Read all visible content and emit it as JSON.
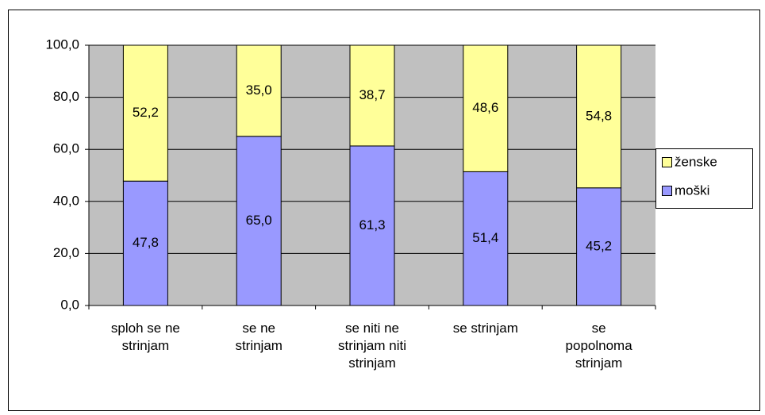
{
  "chart_data": {
    "type": "stacked_bar",
    "categories": [
      "sploh se ne strinjam",
      "se ne strinjam",
      "se niti ne strinjam niti strinjam",
      "se strinjam",
      "se popolnoma strinjam"
    ],
    "series": [
      {
        "name": "moški",
        "color": "#9999ff",
        "values": [
          47.8,
          65.0,
          61.3,
          51.4,
          45.2
        ],
        "value_labels": [
          "47,8",
          "65,0",
          "61,3",
          "51,4",
          "45,2"
        ]
      },
      {
        "name": "ženske",
        "color": "#ffff99",
        "values": [
          52.2,
          35.0,
          38.7,
          48.6,
          54.8
        ],
        "value_labels": [
          "52,2",
          "35,0",
          "38,7",
          "48,6",
          "54,8"
        ]
      }
    ],
    "ylim": [
      0,
      100
    ],
    "yticks": [
      {
        "value": 0,
        "label": "0,0"
      },
      {
        "value": 20,
        "label": "20,0"
      },
      {
        "value": 40,
        "label": "40,0"
      },
      {
        "value": 60,
        "label": "60,0"
      },
      {
        "value": 80,
        "label": "80,0"
      },
      {
        "value": 100,
        "label": "100,0"
      }
    ],
    "grid": true,
    "legend": "right",
    "plot_background": "#c0c0c0"
  }
}
